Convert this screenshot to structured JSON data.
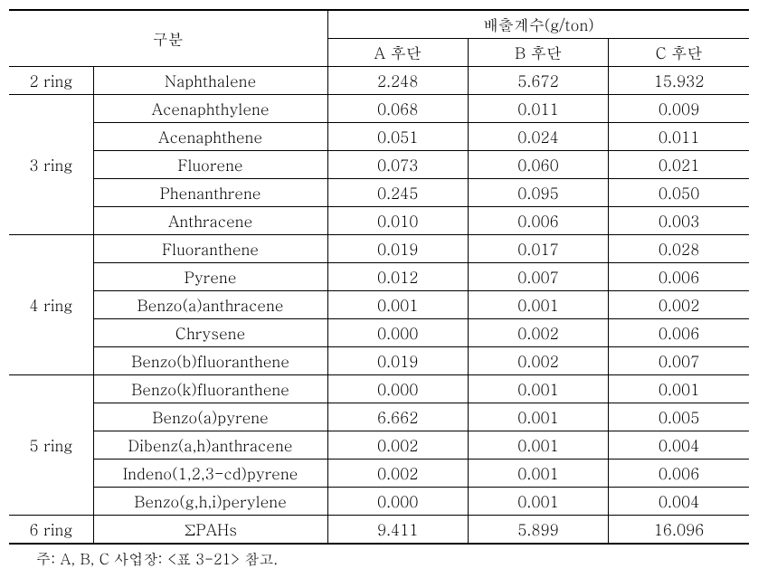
{
  "header": {
    "category_label": "구분",
    "emission_label": "배출계수(g/ton)",
    "col_a": "A 후단",
    "col_b": "B 후단",
    "col_c": "C 후단"
  },
  "groups": [
    {
      "ring_label": "2 ring",
      "rows": [
        {
          "compound": "Naphthalene",
          "a": "2.248",
          "b": "5.672",
          "c": "15.932"
        }
      ]
    },
    {
      "ring_label": "3 ring",
      "rows": [
        {
          "compound": "Acenaphthylene",
          "a": "0.068",
          "b": "0.011",
          "c": "0.009"
        },
        {
          "compound": "Acenaphthene",
          "a": "0.051",
          "b": "0.024",
          "c": "0.011"
        },
        {
          "compound": "Fluorene",
          "a": "0.073",
          "b": "0.060",
          "c": "0.021"
        },
        {
          "compound": "Phenanthrene",
          "a": "0.245",
          "b": "0.095",
          "c": "0.050"
        },
        {
          "compound": "Anthracene",
          "a": "0.010",
          "b": "0.006",
          "c": "0.003"
        }
      ]
    },
    {
      "ring_label": "4 ring",
      "rows": [
        {
          "compound": "Fluoranthene",
          "a": "0.019",
          "b": "0.017",
          "c": "0.028"
        },
        {
          "compound": "Pyrene",
          "a": "0.012",
          "b": "0.007",
          "c": "0.006"
        },
        {
          "compound": "Benzo(a)anthracene",
          "a": "0.001",
          "b": "0.001",
          "c": "0.002"
        },
        {
          "compound": "Chrysene",
          "a": "0.000",
          "b": "0.002",
          "c": "0.006"
        },
        {
          "compound": "Benzo(b)fluoranthene",
          "a": "0.019",
          "b": "0.002",
          "c": "0.007"
        }
      ]
    },
    {
      "ring_label": "5 ring",
      "rows": [
        {
          "compound": "Benzo(k)fluoranthene",
          "a": "0.000",
          "b": "0.001",
          "c": "0.001"
        },
        {
          "compound": "Benzo(a)pyrene",
          "a": "6.662",
          "b": "0.001",
          "c": "0.005"
        },
        {
          "compound": "Dibenz(a,h)anthracene",
          "a": "0.002",
          "b": "0.001",
          "c": "0.004"
        },
        {
          "compound": "Indeno(1,2,3-cd)pyrene",
          "a": "0.002",
          "b": "0.001",
          "c": "0.006"
        },
        {
          "compound": "Benzo(g,h,i)perylene",
          "a": "0.000",
          "b": "0.001",
          "c": "0.004"
        }
      ]
    },
    {
      "ring_label": "6 ring",
      "rows": [
        {
          "compound": "ΣPAHs",
          "a": "9.411",
          "b": "5.899",
          "c": "16.096"
        }
      ]
    }
  ],
  "footnote": "주: A, B, C 사업장: <표 3-21> 참고."
}
